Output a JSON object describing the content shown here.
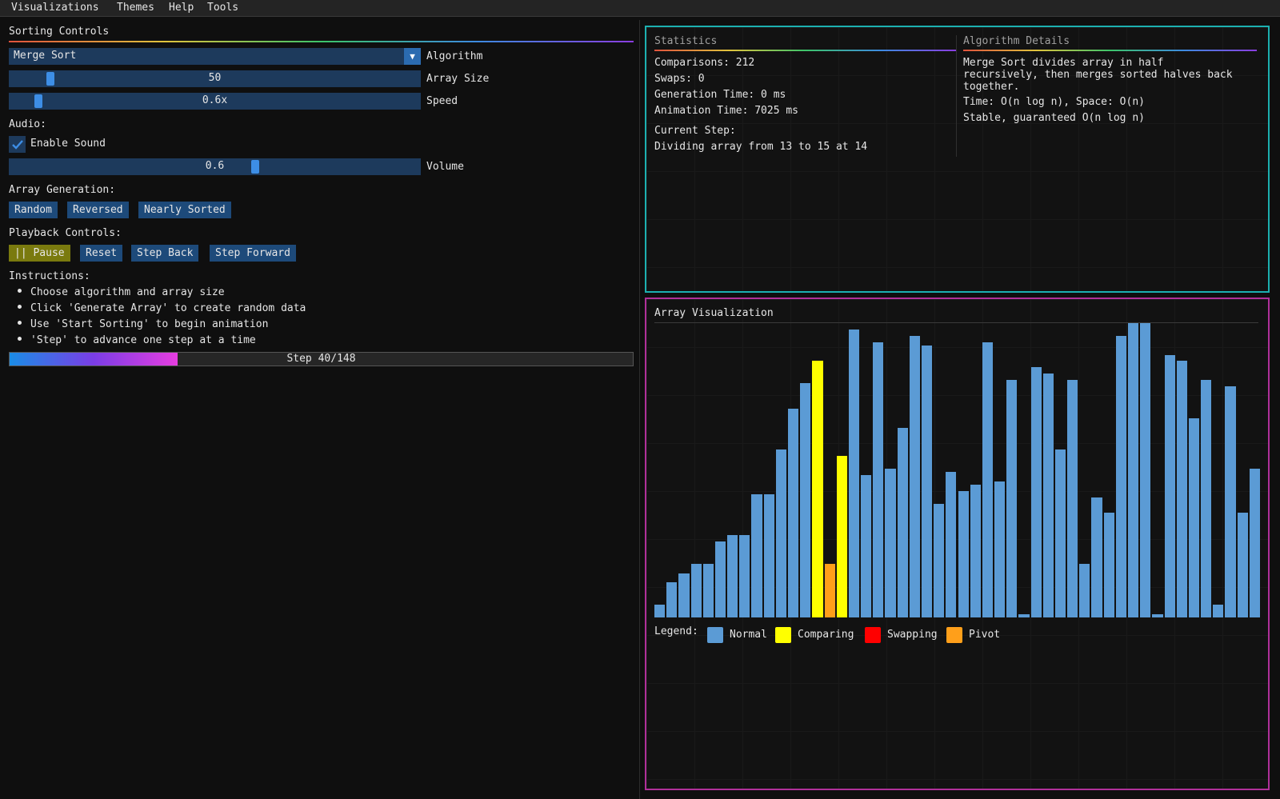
{
  "menu": [
    "Visualizations",
    "Themes",
    "Help",
    "Tools"
  ],
  "controls": {
    "title": "Sorting Controls",
    "algorithm": {
      "value": "Merge Sort",
      "label": "Algorithm"
    },
    "array_size": {
      "value": "50",
      "label": "Array Size",
      "fraction": 0.09
    },
    "speed": {
      "value": "0.6x",
      "label": "Speed",
      "fraction": 0.06
    },
    "audio_title": "Audio:",
    "enable_sound": {
      "label": "Enable Sound",
      "checked": true
    },
    "volume": {
      "value": "0.6",
      "label": "Volume",
      "fraction": 0.6
    },
    "generation_title": "Array Generation:",
    "generation_buttons": [
      "Random",
      "Reversed",
      "Nearly Sorted"
    ],
    "playback_title": "Playback Controls:",
    "playback_buttons": [
      "|| Pause",
      "Reset",
      "Step Back",
      "Step Forward"
    ],
    "instructions_title": "Instructions:",
    "instructions": [
      "Choose algorithm and array size",
      "Click 'Generate Array' to create random data",
      "Use 'Start Sorting' to begin animation",
      "'Step' to advance one step at a time"
    ],
    "progress": {
      "text": "Step 40/148",
      "fraction": 0.27
    }
  },
  "statistics": {
    "title": "Statistics",
    "comparisons": "Comparisons: 212",
    "swaps": "Swaps: 0",
    "generation_time": "Generation Time: 0 ms",
    "animation_time": "Animation Time: 7025 ms",
    "current_step_label": "Current Step:",
    "current_step": "Dividing array from 13 to 15 at 14"
  },
  "details": {
    "title": "Algorithm Details",
    "description_lines": [
      "Merge Sort divides array in half",
      "recursively, then merges sorted halves back",
      "together."
    ],
    "complexity": "Time: O(n log n), Space: O(n)",
    "stability": "Stable, guaranteed O(n log n)"
  },
  "visualization": {
    "title": "Array Visualization",
    "legend_label": "Legend:",
    "legend": [
      {
        "label": "Normal",
        "color": "#5b9bd5"
      },
      {
        "label": "Comparing",
        "color": "#ffff00"
      },
      {
        "label": "Swapping",
        "color": "#ff0000"
      },
      {
        "label": "Pivot",
        "color": "#ff9f1a"
      }
    ]
  },
  "chart_data": {
    "type": "bar",
    "values": [
      4,
      11,
      14,
      17,
      17,
      24,
      26,
      26,
      39,
      39,
      53,
      66,
      74,
      81,
      17,
      51,
      91,
      45,
      87,
      47,
      60,
      89,
      86,
      36,
      46,
      40,
      42,
      87,
      43,
      75,
      1,
      79,
      77,
      53,
      75,
      17,
      38,
      33,
      89,
      93,
      93,
      1,
      83,
      81,
      63,
      75,
      4,
      73,
      33,
      47
    ],
    "states": [
      "normal",
      "normal",
      "normal",
      "normal",
      "normal",
      "normal",
      "normal",
      "normal",
      "normal",
      "normal",
      "normal",
      "normal",
      "normal",
      "comparing",
      "pivot",
      "comparing",
      "normal",
      "normal",
      "normal",
      "normal",
      "normal",
      "normal",
      "normal",
      "normal",
      "normal",
      "normal",
      "normal",
      "normal",
      "normal",
      "normal",
      "normal",
      "normal",
      "normal",
      "normal",
      "normal",
      "normal",
      "normal",
      "normal",
      "normal",
      "normal",
      "normal",
      "normal",
      "normal",
      "normal",
      "normal",
      "normal",
      "normal",
      "normal",
      "normal",
      "normal"
    ],
    "colors": {
      "normal": "#5b9bd5",
      "comparing": "#ffff00",
      "swapping": "#ff0000",
      "pivot": "#ff9f1a"
    },
    "ylim": [
      0,
      93
    ]
  }
}
